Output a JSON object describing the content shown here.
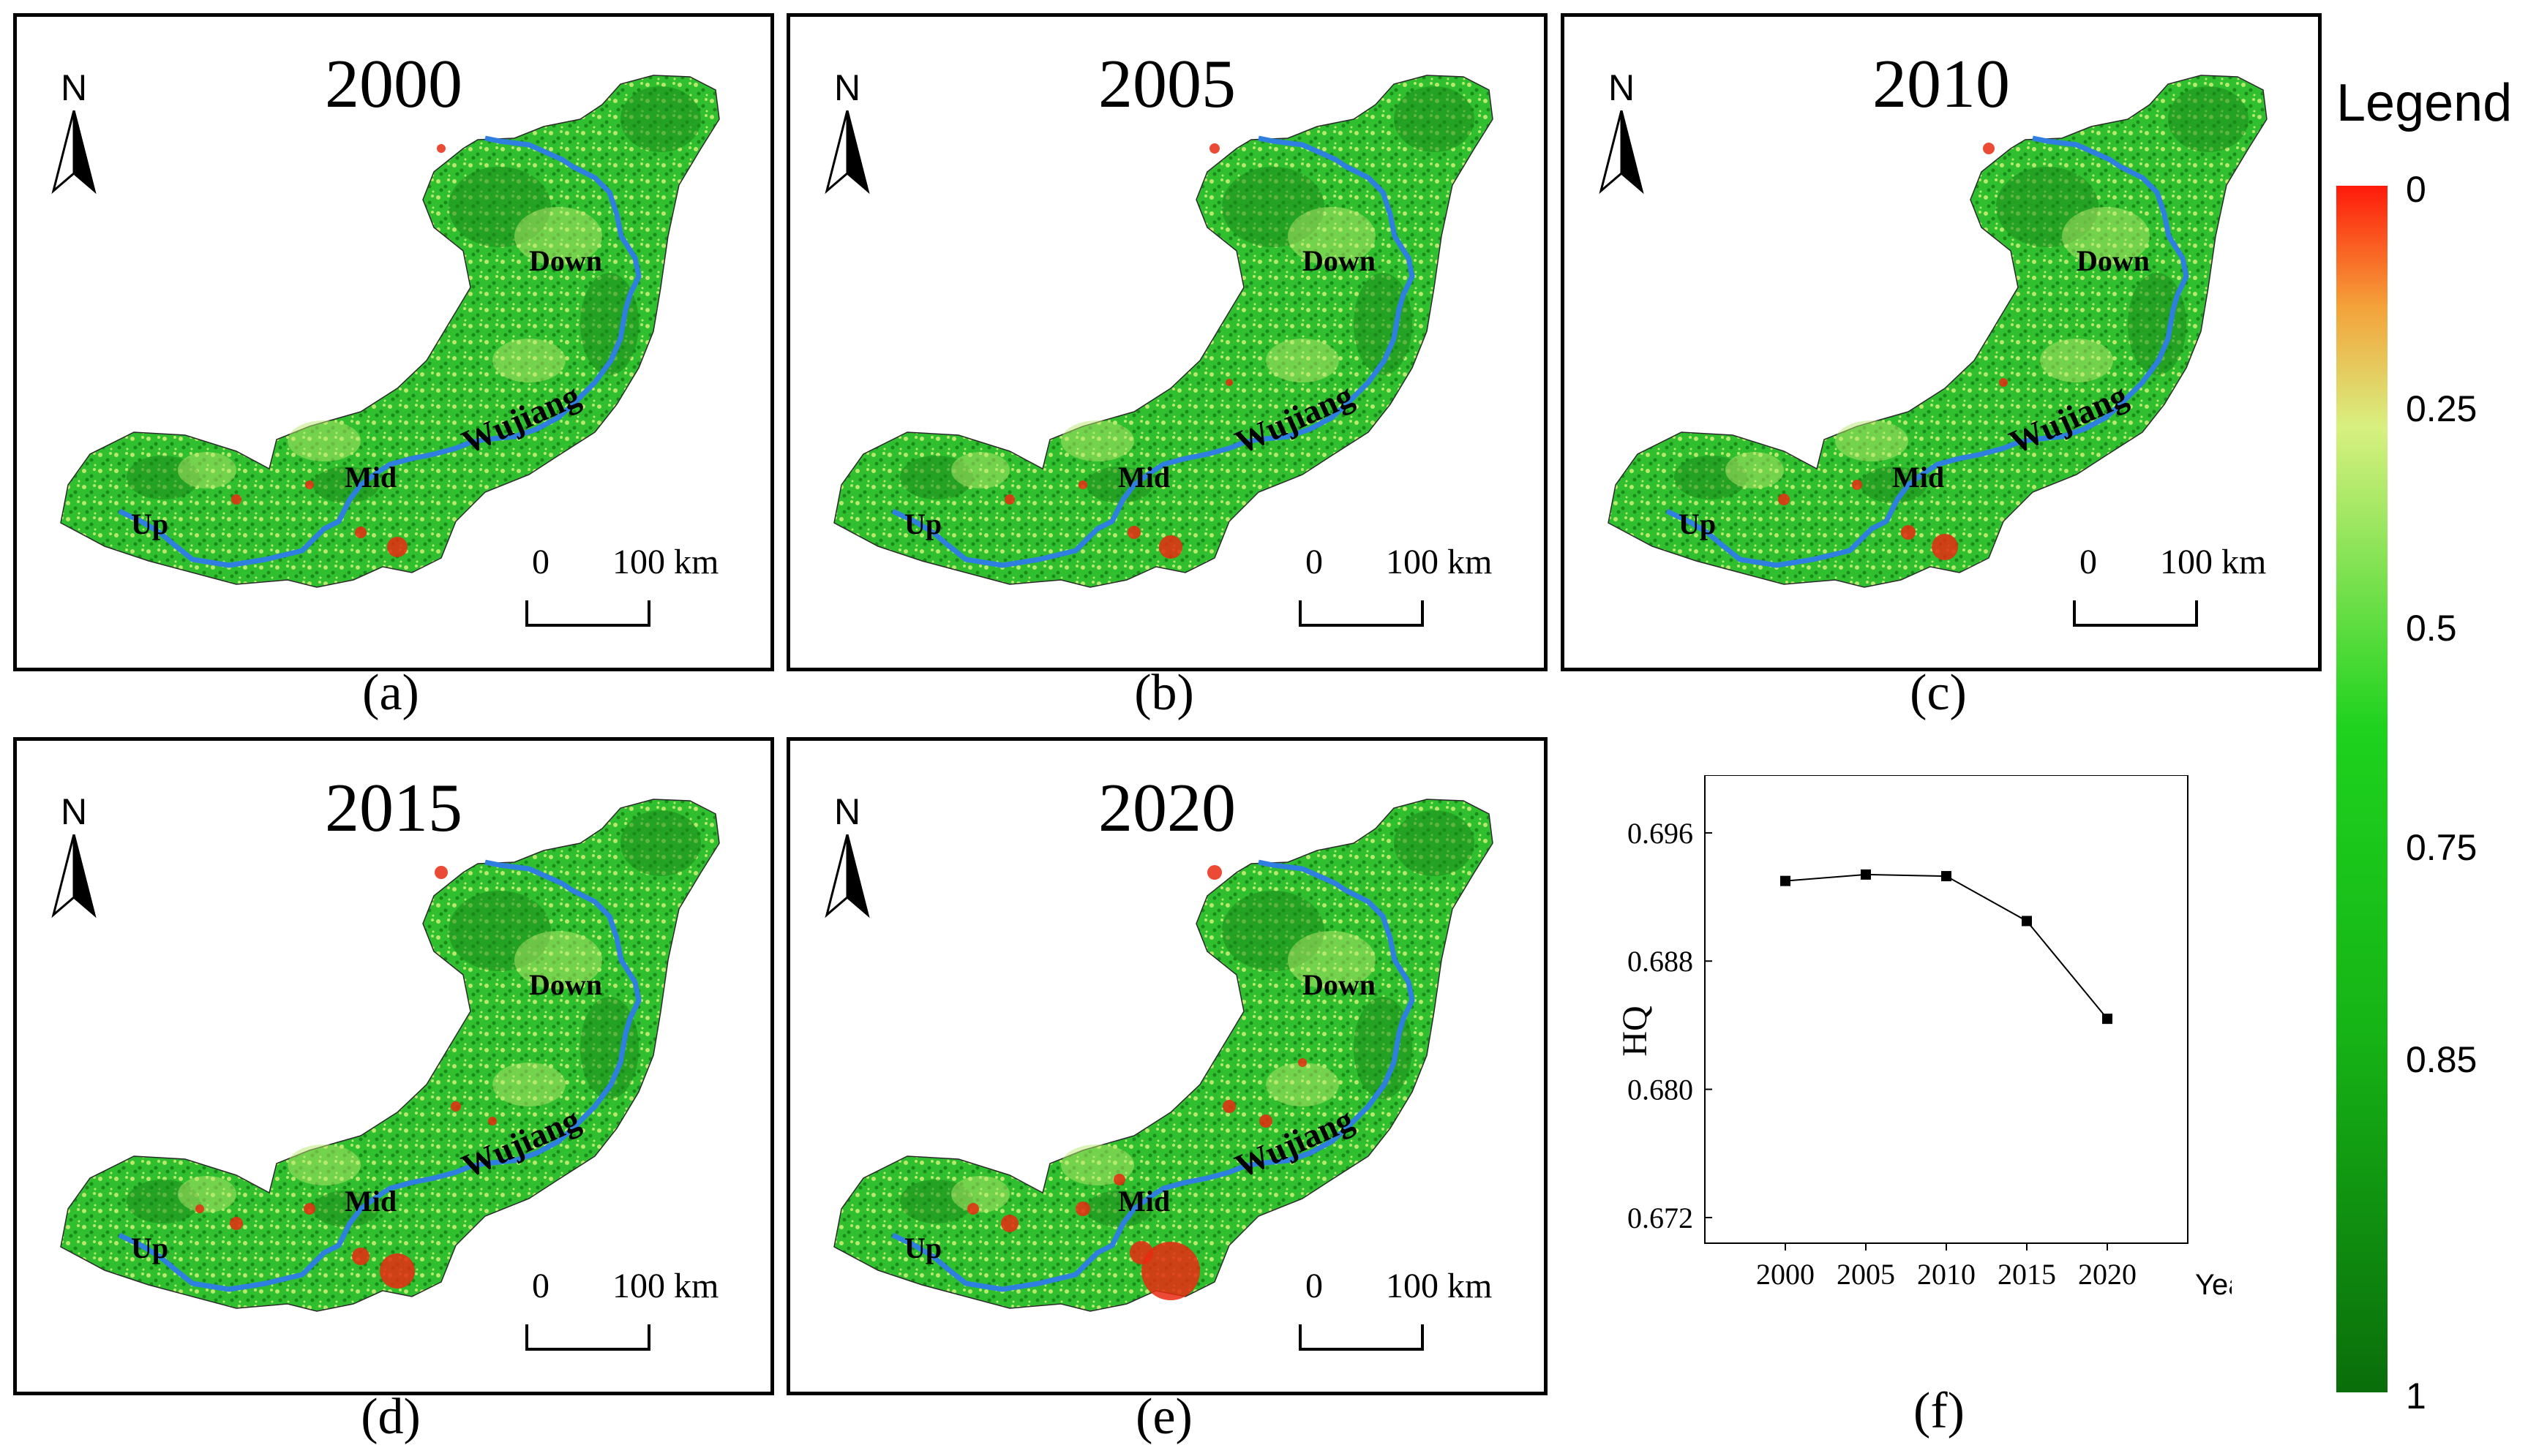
{
  "panels": [
    {
      "year": "2000",
      "caption": "(a)"
    },
    {
      "year": "2005",
      "caption": "(b)"
    },
    {
      "year": "2010",
      "caption": "(c)"
    },
    {
      "year": "2015",
      "caption": "(d)"
    },
    {
      "year": "2020",
      "caption": "(e)"
    }
  ],
  "map_labels": {
    "north": "N",
    "up": "Up",
    "mid": "Mid",
    "down": "Down",
    "river": "Wujiang"
  },
  "scale_bar": {
    "start": "0",
    "end": "100 km"
  },
  "legend": {
    "title": "Legend",
    "ticks": [
      "0",
      "0.25",
      "0.5",
      "0.75",
      "0.85",
      "1"
    ],
    "colors": {
      "low": "#ff1a0a",
      "mid_low": "#d8f080",
      "mid": "#1ed21e",
      "high": "#0a6e0a"
    }
  },
  "colors": {
    "river": "#2e7fe0",
    "land_base": "#2fbf2f",
    "land_dark": "#1a8a1a",
    "land_light": "#b8e86c",
    "hot": "#e82a10"
  },
  "chart_caption": "(f)",
  "chart_data": {
    "type": "line",
    "title": "",
    "xlabel": "Year",
    "ylabel": "HQ",
    "x": [
      2000,
      2005,
      2010,
      2015,
      2020
    ],
    "x_tick_labels": [
      "2000",
      "2005",
      "2010",
      "2015",
      "2020"
    ],
    "series": [
      {
        "name": "HQ",
        "values": [
          0.693,
          0.6934,
          0.6933,
          0.6905,
          0.6844
        ]
      }
    ],
    "y_ticks": [
      0.672,
      0.68,
      0.688,
      0.696
    ],
    "y_tick_labels": [
      "0.672",
      "0.680",
      "0.688",
      "0.696"
    ],
    "xlim": [
      1995,
      2025
    ],
    "ylim": [
      0.6704,
      0.6996
    ]
  }
}
